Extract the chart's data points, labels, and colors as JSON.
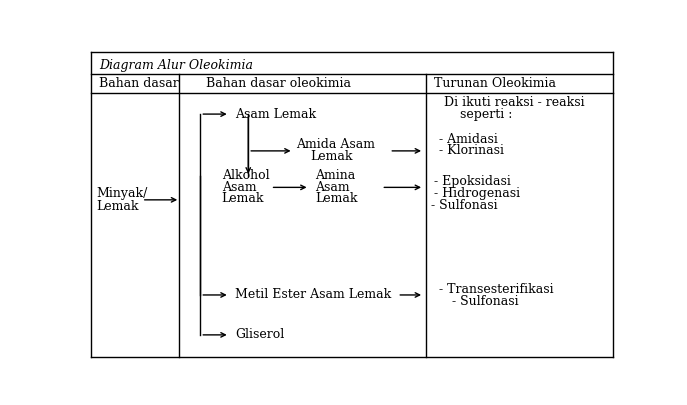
{
  "title": "Diagram Alur Oleokimia",
  "col1_header": "Bahan dasar",
  "col2_header": "Bahan dasar oleokimia",
  "col3_header": "Turunan Oleokimia",
  "bg_color": "#ffffff",
  "text_color": "#000000",
  "font_size": 9,
  "figsize": [
    6.87,
    4.05
  ],
  "dpi": 100,
  "col1_vline": 0.175,
  "col3_vline": 0.638
}
